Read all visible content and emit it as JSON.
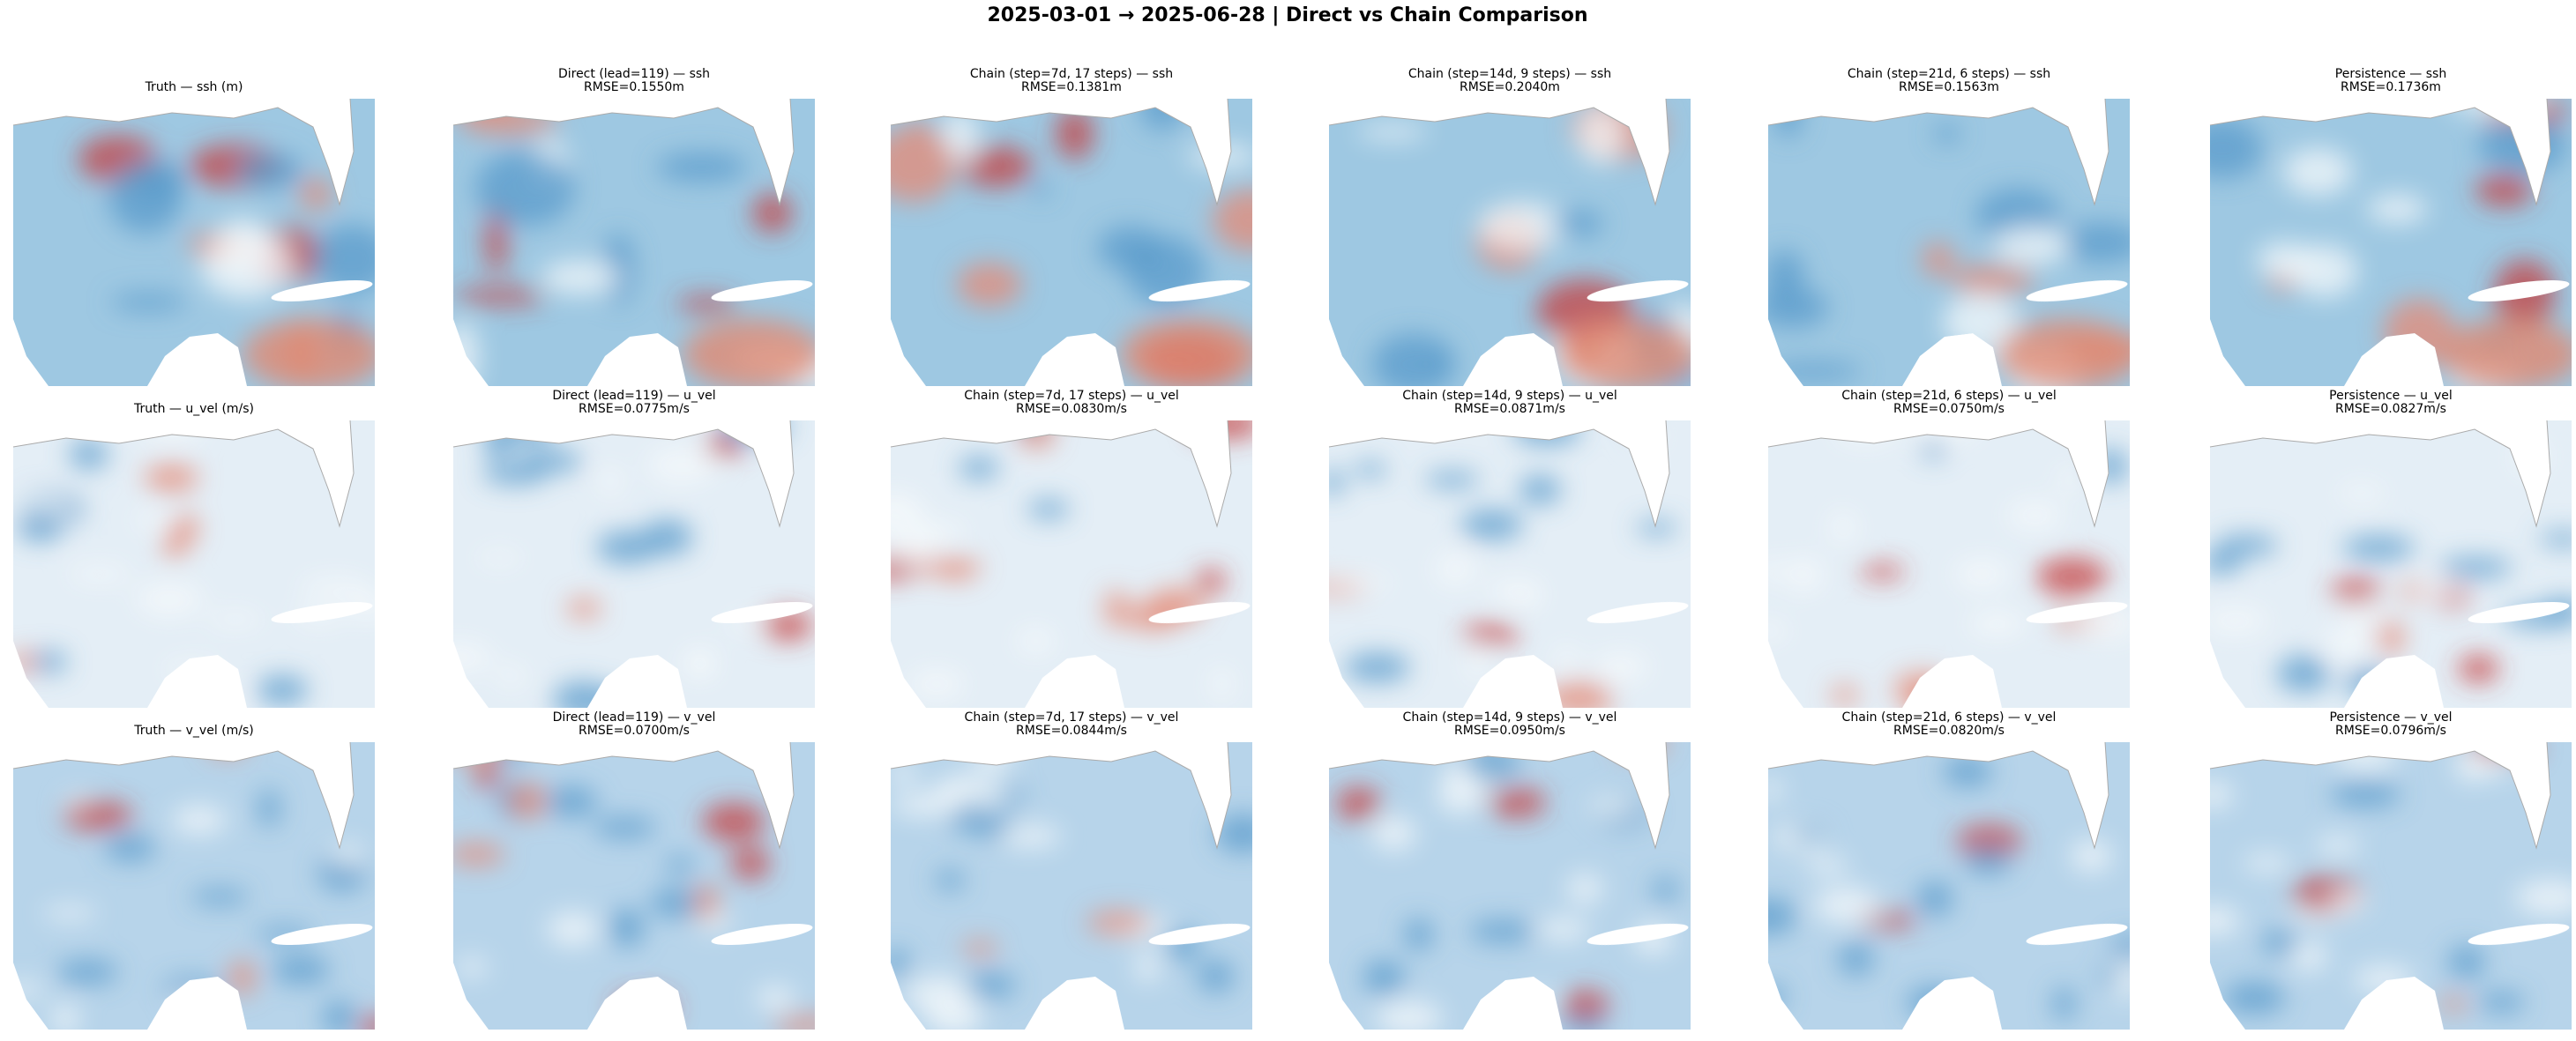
{
  "title": "2025-03-01 → 2025-06-28  |  Direct vs Chain Comparison",
  "rows": [
    [
      {
        "lines": [
          "Truth — ssh (m)"
        ]
      },
      {
        "lines": [
          "Direct (lead=119) — ssh",
          "RMSE=0.1550m"
        ]
      },
      {
        "lines": [
          "Chain (step=7d, 17 steps) — ssh",
          "RMSE=0.1381m"
        ]
      },
      {
        "lines": [
          "Chain (step=14d, 9 steps) — ssh",
          "RMSE=0.2040m"
        ]
      },
      {
        "lines": [
          "Chain (step=21d, 6 steps) — ssh",
          "RMSE=0.1563m"
        ]
      },
      {
        "lines": [
          "Persistence — ssh",
          "RMSE=0.1736m"
        ]
      }
    ],
    [
      {
        "lines": [
          "Truth — u_vel (m/s)"
        ]
      },
      {
        "lines": [
          "Direct (lead=119) — u_vel",
          "RMSE=0.0775m/s"
        ]
      },
      {
        "lines": [
          "Chain (step=7d, 17 steps) — u_vel",
          "RMSE=0.0830m/s"
        ]
      },
      {
        "lines": [
          "Chain (step=14d, 9 steps) — u_vel",
          "RMSE=0.0871m/s"
        ]
      },
      {
        "lines": [
          "Chain (step=21d, 6 steps) — u_vel",
          "RMSE=0.0750m/s"
        ]
      },
      {
        "lines": [
          "Persistence — u_vel",
          "RMSE=0.0827m/s"
        ]
      }
    ],
    [
      {
        "lines": [
          "Truth — v_vel (m/s)"
        ]
      },
      {
        "lines": [
          "Direct (lead=119) — v_vel",
          "RMSE=0.0700m/s"
        ]
      },
      {
        "lines": [
          "Chain (step=7d, 17 steps) — v_vel",
          "RMSE=0.0844m/s"
        ]
      },
      {
        "lines": [
          "Chain (step=14d, 9 steps) — v_vel",
          "RMSE=0.0950m/s"
        ]
      },
      {
        "lines": [
          "Chain (step=21d, 6 steps) — v_vel",
          "RMSE=0.0820m/s"
        ]
      },
      {
        "lines": [
          "Persistence — v_vel",
          "RMSE=0.0796m/s"
        ]
      }
    ]
  ]
}
